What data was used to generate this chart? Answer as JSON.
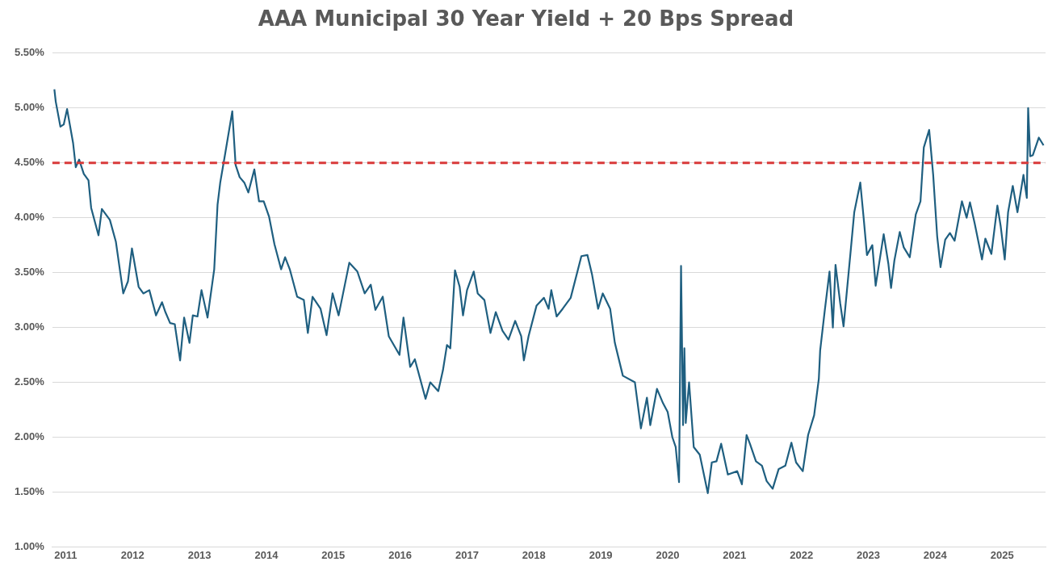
{
  "chart_data": {
    "type": "line",
    "title": "AAA Municipal 30 Year Yield  + 20 Bps Spread",
    "xlim": [
      2010.8,
      2025.65
    ],
    "xticks": [
      2011,
      2012,
      2013,
      2014,
      2015,
      2016,
      2017,
      2018,
      2019,
      2020,
      2021,
      2022,
      2023,
      2024,
      2025
    ],
    "ylim": [
      1.0,
      5.5
    ],
    "yticks": [
      {
        "value": 1.0,
        "label": "1.00%"
      },
      {
        "value": 1.5,
        "label": "1.50%"
      },
      {
        "value": 2.0,
        "label": "2.00%"
      },
      {
        "value": 2.5,
        "label": "2.50%"
      },
      {
        "value": 3.0,
        "label": "3.00%"
      },
      {
        "value": 3.5,
        "label": "3.50%"
      },
      {
        "value": 4.0,
        "label": "4.00%"
      },
      {
        "value": 4.5,
        "label": "4.50%"
      },
      {
        "value": 5.0,
        "label": "5.00%"
      },
      {
        "value": 5.5,
        "label": "5.50%"
      }
    ],
    "grid": "y",
    "legend": false,
    "marker": "none",
    "line_style": "solid",
    "ref_lines": [
      {
        "axis": "y",
        "value": 4.5,
        "color": "#d93a3a",
        "line_style": "dashed"
      }
    ],
    "series": [
      {
        "color": "#1f5f80",
        "x": [
          2010.83,
          2010.85,
          2010.92,
          2010.97,
          2011.02,
          2011.11,
          2011.15,
          2011.2,
          2011.27,
          2011.34,
          2011.38,
          2011.49,
          2011.54,
          2011.66,
          2011.75,
          2011.82,
          2011.86,
          2011.93,
          2011.99,
          2012.09,
          2012.16,
          2012.25,
          2012.35,
          2012.44,
          2012.49,
          2012.56,
          2012.63,
          2012.71,
          2012.77,
          2012.85,
          2012.9,
          2012.97,
          2013.03,
          2013.12,
          2013.22,
          2013.27,
          2013.31,
          2013.38,
          2013.49,
          2013.54,
          2013.6,
          2013.67,
          2013.73,
          2013.82,
          2013.89,
          2013.96,
          2014.04,
          2014.12,
          2014.22,
          2014.28,
          2014.35,
          2014.46,
          2014.56,
          2014.62,
          2014.69,
          2014.81,
          2014.9,
          2014.99,
          2015.08,
          2015.24,
          2015.36,
          2015.47,
          2015.56,
          2015.63,
          2015.74,
          2015.83,
          2015.99,
          2016.05,
          2016.15,
          2016.22,
          2016.38,
          2016.45,
          2016.57,
          2016.64,
          2016.7,
          2016.75,
          2016.82,
          2016.89,
          2016.94,
          2017.0,
          2017.1,
          2017.16,
          2017.26,
          2017.35,
          2017.43,
          2017.53,
          2017.62,
          2017.72,
          2017.81,
          2017.85,
          2017.92,
          2018.04,
          2018.15,
          2018.22,
          2018.26,
          2018.34,
          2018.43,
          2018.55,
          2018.71,
          2018.8,
          2018.87,
          2018.96,
          2019.03,
          2019.14,
          2019.21,
          2019.33,
          2019.51,
          2019.6,
          2019.69,
          2019.74,
          2019.84,
          2019.93,
          2020.0,
          2020.07,
          2020.12,
          2020.17,
          2020.2,
          2020.23,
          2020.25,
          2020.27,
          2020.32,
          2020.39,
          2020.48,
          2020.6,
          2020.66,
          2020.73,
          2020.8,
          2020.9,
          2021.04,
          2021.11,
          2021.18,
          2021.23,
          2021.32,
          2021.41,
          2021.48,
          2021.57,
          2021.66,
          2021.76,
          2021.85,
          2021.92,
          2022.02,
          2022.1,
          2022.19,
          2022.26,
          2022.28,
          2022.35,
          2022.42,
          2022.47,
          2022.51,
          2022.58,
          2022.63,
          2022.74,
          2022.79,
          2022.88,
          2022.93,
          2022.98,
          2023.06,
          2023.11,
          2023.23,
          2023.3,
          2023.34,
          2023.39,
          2023.47,
          2023.53,
          2023.62,
          2023.71,
          2023.78,
          2023.83,
          2023.91,
          2023.97,
          2024.03,
          2024.08,
          2024.15,
          2024.22,
          2024.29,
          2024.4,
          2024.47,
          2024.52,
          2024.59,
          2024.7,
          2024.75,
          2024.84,
          2024.93,
          2024.98,
          2025.04,
          2025.09,
          2025.16,
          2025.23,
          2025.32,
          2025.37,
          2025.39,
          2025.42,
          2025.46,
          2025.55,
          2025.62
        ],
        "values": [
          5.17,
          5.06,
          4.83,
          4.85,
          4.99,
          4.68,
          4.46,
          4.53,
          4.4,
          4.34,
          4.09,
          3.84,
          4.08,
          3.98,
          3.78,
          3.48,
          3.31,
          3.42,
          3.72,
          3.37,
          3.31,
          3.34,
          3.11,
          3.23,
          3.14,
          3.04,
          3.03,
          2.7,
          3.09,
          2.86,
          3.11,
          3.1,
          3.34,
          3.09,
          3.53,
          4.12,
          4.32,
          4.57,
          4.97,
          4.48,
          4.37,
          4.32,
          4.23,
          4.44,
          4.15,
          4.15,
          4.01,
          3.76,
          3.53,
          3.64,
          3.53,
          3.28,
          3.25,
          2.95,
          3.28,
          3.17,
          2.93,
          3.31,
          3.11,
          3.59,
          3.51,
          3.31,
          3.39,
          3.16,
          3.28,
          2.92,
          2.75,
          3.09,
          2.64,
          2.71,
          2.35,
          2.5,
          2.42,
          2.61,
          2.84,
          2.81,
          3.52,
          3.37,
          3.11,
          3.34,
          3.51,
          3.31,
          3.25,
          2.95,
          3.14,
          2.97,
          2.89,
          3.06,
          2.92,
          2.7,
          2.92,
          3.2,
          3.27,
          3.17,
          3.34,
          3.1,
          3.17,
          3.27,
          3.65,
          3.66,
          3.48,
          3.17,
          3.31,
          3.17,
          2.86,
          2.56,
          2.5,
          2.08,
          2.36,
          2.11,
          2.44,
          2.31,
          2.23,
          2.0,
          1.91,
          1.59,
          3.56,
          2.11,
          2.81,
          2.13,
          2.5,
          1.91,
          1.84,
          1.49,
          1.77,
          1.78,
          1.94,
          1.66,
          1.69,
          1.57,
          2.02,
          1.94,
          1.78,
          1.74,
          1.6,
          1.53,
          1.71,
          1.74,
          1.95,
          1.77,
          1.69,
          2.02,
          2.2,
          2.53,
          2.79,
          3.16,
          3.51,
          3.0,
          3.57,
          3.22,
          3.01,
          3.72,
          4.05,
          4.32,
          4.0,
          3.66,
          3.75,
          3.38,
          3.85,
          3.58,
          3.36,
          3.61,
          3.87,
          3.73,
          3.64,
          4.03,
          4.15,
          4.64,
          4.8,
          4.39,
          3.83,
          3.55,
          3.8,
          3.86,
          3.79,
          4.15,
          4.0,
          4.14,
          3.95,
          3.62,
          3.81,
          3.67,
          4.11,
          3.92,
          3.62,
          4.05,
          4.29,
          4.05,
          4.39,
          4.18,
          5.0,
          4.56,
          4.57,
          4.73,
          4.66
        ]
      }
    ]
  }
}
